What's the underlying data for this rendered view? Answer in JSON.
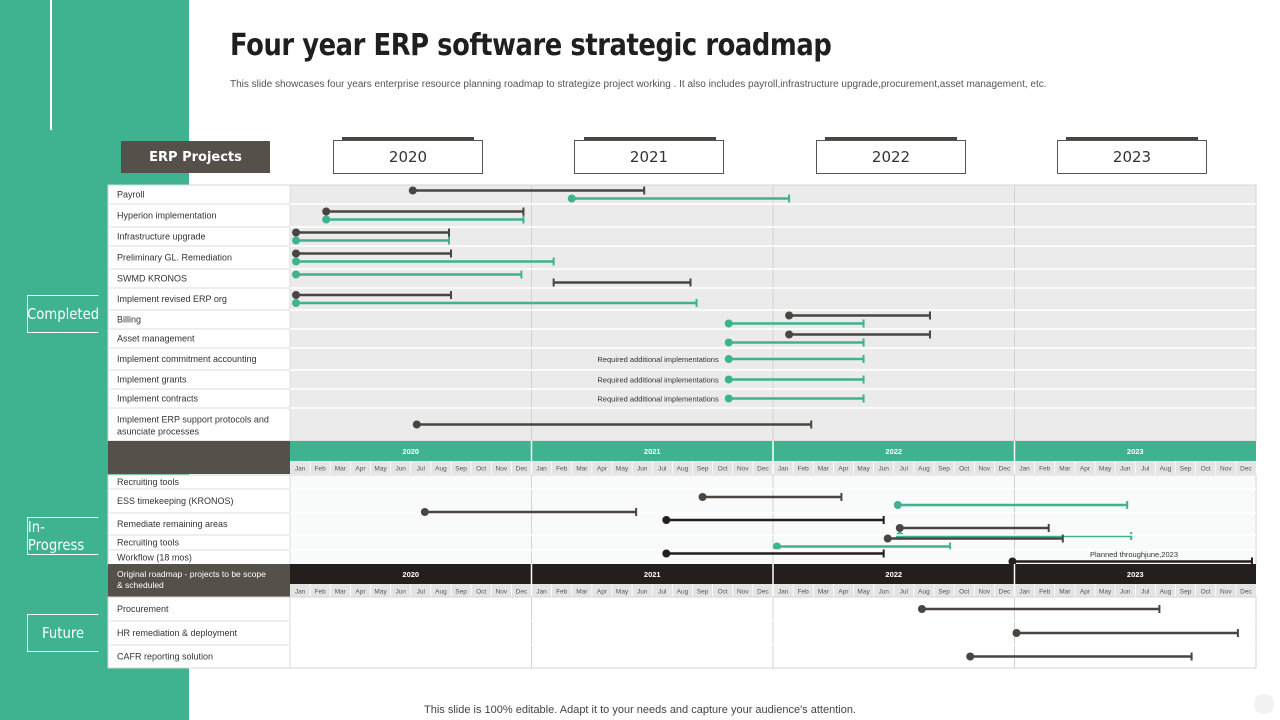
{
  "title": "Four year ERP software strategic roadmap",
  "subtitle": "This slide showcases four years enterprise resource planning roadmap to strategize project working . It also includes payroll,infrastructure upgrade,procurement,asset management, etc.",
  "footer": "This slide is 100% editable. Adapt it to your needs and capture your audience's attention.",
  "erp_header": "ERP Projects",
  "years": [
    "2020",
    "2021",
    "2022",
    "2023"
  ],
  "months": [
    "Jan",
    "Feb",
    "Mar",
    "Apr",
    "May",
    "Jun",
    "Jul",
    "Aug",
    "Sep",
    "Oct",
    "Nov",
    "Dec"
  ],
  "phases": {
    "completed": "Completed",
    "in_progress": "In-Progress",
    "future": "Future"
  },
  "colors": {
    "green": "#3fb28f",
    "dark": "#4a4540",
    "black": "#231f1c",
    "gray_band": "#ebebeb",
    "header_brown": "#55504a"
  },
  "legend_cell": "Original roadmap - projects to be scope & scheduled",
  "chart_data": {
    "type": "gantt",
    "time_unit": "month index from Jan 2020 (0 = Jan 2020, 48 = end of Dec 2023)",
    "sections": [
      {
        "phase": "Completed",
        "rows": [
          {
            "label": "Payroll",
            "bars": [
              {
                "start": 6.1,
                "end": 17.6,
                "color": "dark",
                "dot": "start",
                "tick": "end"
              },
              {
                "start": 14,
                "end": 24.8,
                "color": "green",
                "dot": "start",
                "tick": "end"
              }
            ]
          },
          {
            "label": "Hyperion implementation",
            "bars": [
              {
                "start": 1.8,
                "end": 11.6,
                "color": "dark",
                "dot": "start",
                "tick": "end"
              },
              {
                "start": 1.8,
                "end": 11.6,
                "color": "green",
                "dot": "start",
                "tick": "end"
              }
            ]
          },
          {
            "label": "Infrastructure upgrade",
            "bars": [
              {
                "start": 0.3,
                "end": 7.9,
                "color": "dark",
                "dot": "start",
                "tick": "end"
              },
              {
                "start": 0.3,
                "end": 7.9,
                "color": "green",
                "dot": "start",
                "tick": "end"
              }
            ]
          },
          {
            "label": "Preliminary GL. Remediation",
            "bars": [
              {
                "start": 0.3,
                "end": 8,
                "color": "dark",
                "dot": "start",
                "tick": "end"
              },
              {
                "start": 0.3,
                "end": 13.1,
                "color": "green",
                "dot": "start",
                "tick": "end"
              }
            ]
          },
          {
            "label": "SWMD KRONOS",
            "bars": [
              {
                "start": 0.3,
                "end": 11.5,
                "color": "green",
                "dot": "start",
                "tick": "end"
              },
              {
                "start": 13.1,
                "end": 19.9,
                "color": "dark",
                "dot": "none",
                "tick": "both"
              }
            ]
          },
          {
            "label": "Implement revised ERP org",
            "bars": [
              {
                "start": 0.3,
                "end": 8,
                "color": "dark",
                "dot": "start",
                "tick": "end"
              },
              {
                "start": 0.3,
                "end": 20.2,
                "color": "green",
                "dot": "start",
                "tick": "end"
              }
            ]
          },
          {
            "label": "Billing",
            "bars": [
              {
                "start": 24.8,
                "end": 31.8,
                "color": "dark",
                "dot": "start",
                "tick": "end"
              },
              {
                "start": 21.8,
                "end": 28.5,
                "color": "green",
                "dot": "start",
                "tick": "end"
              }
            ]
          },
          {
            "label": "Asset management",
            "bars": [
              {
                "start": 24.8,
                "end": 31.8,
                "color": "dark",
                "dot": "start",
                "tick": "end"
              },
              {
                "start": 21.8,
                "end": 28.5,
                "color": "green",
                "dot": "start",
                "tick": "end"
              }
            ]
          },
          {
            "label": "Implement commitment accounting",
            "note": "Required additional implementations",
            "bars": [
              {
                "start": 21.8,
                "end": 28.5,
                "color": "green",
                "dot": "start",
                "tick": "end"
              }
            ]
          },
          {
            "label": "Implement grants",
            "note": "Required additional implementations",
            "bars": [
              {
                "start": 21.8,
                "end": 28.5,
                "color": "green",
                "dot": "start",
                "tick": "end"
              }
            ]
          },
          {
            "label": "Implement contracts",
            "note": "Required additional implementations",
            "bars": [
              {
                "start": 21.8,
                "end": 28.5,
                "color": "green",
                "dot": "start",
                "tick": "end"
              }
            ]
          },
          {
            "label": "Implement ERP support protocols and asunciate processes",
            "bars": [
              {
                "start": 6.3,
                "end": 25.9,
                "color": "dark",
                "dot": "start",
                "tick": "end"
              }
            ]
          }
        ]
      },
      {
        "phase": "In-Progress",
        "rows": [
          {
            "label": "Recruiting tools",
            "bars": []
          },
          {
            "label": "ESS timekeeping (KRONOS)",
            "bars": [
              {
                "start": 20.5,
                "end": 27.4,
                "color": "dark",
                "dot": "start",
                "tick": "end"
              },
              {
                "start": 30.2,
                "end": 41.6,
                "color": "green",
                "dot": "start",
                "tick": "end"
              }
            ]
          },
          {
            "label": "Remediate remaining areas",
            "bars": [
              {
                "start": 6.7,
                "end": 17.2,
                "color": "dark",
                "dot": "start",
                "tick": "end"
              },
              {
                "start": 18.7,
                "end": 29.5,
                "color": "black",
                "dot": "start",
                "tick": "end"
              },
              {
                "start": 30.3,
                "end": 37.7,
                "color": "dark",
                "dot": "start",
                "tick": "end"
              },
              {
                "start": 30.3,
                "end": 41.8,
                "color": "green",
                "dot": "start",
                "tick": "end"
              }
            ]
          },
          {
            "label": "Recruiting tools",
            "bars": [
              {
                "start": 29.7,
                "end": 38.4,
                "color": "dark",
                "dot": "start",
                "tick": "end"
              },
              {
                "start": 24.2,
                "end": 32.8,
                "color": "green",
                "dot": "start",
                "tick": "end"
              }
            ]
          },
          {
            "label": "Workflow (18 mos)",
            "note": "Planned  throughjune,2023",
            "bars": [
              {
                "start": 18.7,
                "end": 29.5,
                "color": "black",
                "dot": "start",
                "tick": "end"
              },
              {
                "start": 35.9,
                "end": 47.8,
                "color": "black",
                "dot": "start",
                "tick": "end"
              }
            ]
          }
        ]
      },
      {
        "phase": "Future",
        "rows": [
          {
            "label": "Procurement",
            "bars": [
              {
                "start": 31.4,
                "end": 43.2,
                "color": "dark",
                "dot": "start",
                "tick": "end"
              }
            ]
          },
          {
            "label": "HR remediation & deployment",
            "bars": [
              {
                "start": 36.1,
                "end": 47.1,
                "color": "dark",
                "dot": "start",
                "tick": "end"
              }
            ]
          },
          {
            "label": "CAFR reporting solution",
            "bars": [
              {
                "start": 33.8,
                "end": 44.8,
                "color": "dark",
                "dot": "start",
                "tick": "end"
              }
            ]
          }
        ]
      }
    ]
  }
}
